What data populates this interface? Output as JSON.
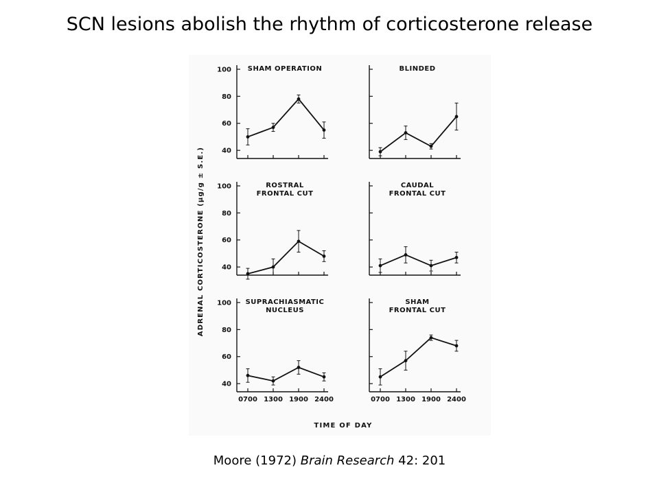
{
  "slide": {
    "title": "SCN lesions abolish the rhythm of corticosterone release",
    "citation": {
      "authors": "Moore",
      "year": "(1972)",
      "journal": "Brain Research",
      "volume_pages": "42: 201"
    }
  },
  "chart_data": {
    "type": "line",
    "ylabel": "ADRENAL  CORTICOSTERONE  (μg/g ± S.E.)",
    "xlabel": "TIME  OF  DAY",
    "x": [
      "0700",
      "1300",
      "1900",
      "2400"
    ],
    "yticks": [
      40,
      60,
      80,
      100
    ],
    "ylim": [
      35,
      102
    ],
    "panels": [
      {
        "title": [
          "SHAM OPERATION"
        ],
        "values": [
          50,
          57,
          78,
          55
        ],
        "errors": [
          6,
          3,
          3,
          6
        ]
      },
      {
        "title": [
          "BLINDED"
        ],
        "values": [
          39,
          53,
          43,
          65
        ],
        "errors": [
          3,
          5,
          2,
          10
        ]
      },
      {
        "title": [
          "ROSTRAL",
          "FRONTAL CUT"
        ],
        "values": [
          35,
          40,
          59,
          48
        ],
        "errors": [
          4,
          6,
          8,
          4
        ]
      },
      {
        "title": [
          "CAUDAL",
          "FRONTAL CUT"
        ],
        "values": [
          41,
          49,
          41,
          47
        ],
        "errors": [
          5,
          6,
          4,
          4
        ]
      },
      {
        "title": [
          "SUPRACHIASMATIC",
          "NUCLEUS"
        ],
        "values": [
          46,
          42,
          52,
          45
        ],
        "errors": [
          5,
          3,
          5,
          3
        ]
      },
      {
        "title": [
          "SHAM",
          "FRONTAL CUT"
        ],
        "values": [
          45,
          57,
          74,
          68
        ],
        "errors": [
          6,
          7,
          2,
          4
        ]
      }
    ]
  }
}
